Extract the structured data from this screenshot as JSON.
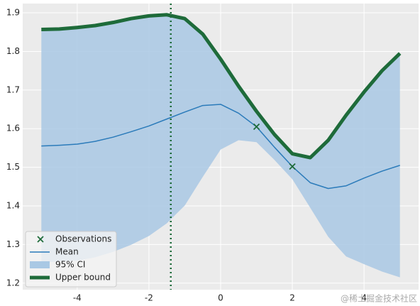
{
  "chart_data": {
    "type": "line",
    "x": [
      -5,
      -4.5,
      -4,
      -3.5,
      -3,
      -2.5,
      -2,
      -1.5,
      -1,
      -0.5,
      0,
      0.5,
      1,
      1.5,
      2,
      2.5,
      3,
      3.5,
      4,
      4.5,
      5
    ],
    "series": [
      {
        "name": "Observations",
        "kind": "scatter",
        "color": "#1e6b3a",
        "x": [
          1,
          2
        ],
        "values": [
          1.605,
          1.502
        ]
      },
      {
        "name": "Mean",
        "kind": "line",
        "color": "#2b7bba",
        "values": [
          1.555,
          1.557,
          1.56,
          1.567,
          1.578,
          1.592,
          1.607,
          1.625,
          1.643,
          1.66,
          1.663,
          1.64,
          1.605,
          1.552,
          1.502,
          1.46,
          1.445,
          1.452,
          1.472,
          1.49,
          1.505
        ]
      },
      {
        "name": "95% CI",
        "kind": "band",
        "color": "#a9c8e4",
        "lower": [
          1.253,
          1.256,
          1.258,
          1.267,
          1.281,
          1.299,
          1.322,
          1.355,
          1.401,
          1.475,
          1.546,
          1.57,
          1.565,
          1.519,
          1.469,
          1.395,
          1.32,
          1.269,
          1.249,
          1.23,
          1.215
        ],
        "upper": [
          1.857,
          1.858,
          1.862,
          1.867,
          1.875,
          1.885,
          1.892,
          1.895,
          1.885,
          1.845,
          1.78,
          1.71,
          1.645,
          1.585,
          1.535,
          1.525,
          1.57,
          1.635,
          1.695,
          1.75,
          1.795
        ]
      },
      {
        "name": "Upper bound",
        "kind": "line",
        "color": "#1e6b3a",
        "values": [
          1.857,
          1.858,
          1.862,
          1.867,
          1.875,
          1.885,
          1.892,
          1.895,
          1.885,
          1.845,
          1.78,
          1.71,
          1.645,
          1.585,
          1.535,
          1.525,
          1.57,
          1.635,
          1.695,
          1.75,
          1.795
        ]
      }
    ],
    "vline": -1.39,
    "vline_color": "#1e6b3a",
    "xlim": [
      -5.52,
      5.52
    ],
    "ylim": [
      1.183,
      1.924
    ],
    "xticks": [
      -4,
      -2,
      0,
      2,
      4
    ],
    "yticks": [
      1.2,
      1.3,
      1.4,
      1.5,
      1.6,
      1.7,
      1.8,
      1.9
    ],
    "grid": true,
    "legend": "lower left",
    "watermark": "@稀土掘金技术社区"
  }
}
